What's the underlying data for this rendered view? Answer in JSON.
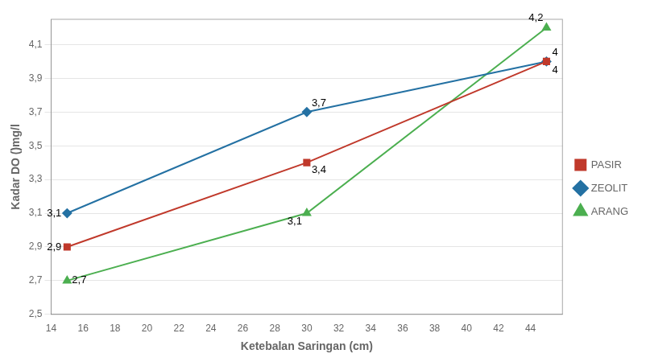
{
  "chart_data": {
    "type": "line",
    "x": [
      15,
      30,
      45
    ],
    "series": [
      {
        "name": "PASIR",
        "color": "#C0392B",
        "marker": "square",
        "values": [
          2.9,
          3.4,
          4.0
        ],
        "value_labels": [
          "2,9",
          "3,4",
          "4"
        ]
      },
      {
        "name": "ZEOLIT",
        "color": "#2471A3",
        "marker": "diamond",
        "values": [
          3.1,
          3.7,
          4.0
        ],
        "value_labels": [
          "3,1",
          "3,7",
          "4"
        ]
      },
      {
        "name": "ARANG",
        "color": "#4CAF50",
        "marker": "triangle",
        "values": [
          2.7,
          3.1,
          4.2
        ],
        "value_labels": [
          "2,7",
          "3,1",
          "4,2"
        ]
      }
    ],
    "xlabel": "Ketebalan Saringan (cm)",
    "ylabel": "Kadar DO ()mg/l",
    "xlim": [
      14,
      46
    ],
    "ylim": [
      2.5,
      4.25
    ],
    "xticks": [
      14,
      16,
      18,
      20,
      22,
      24,
      26,
      28,
      30,
      32,
      34,
      36,
      38,
      40,
      42,
      44
    ],
    "yticks": [
      {
        "value": 2.5,
        "label": "2,5"
      },
      {
        "value": 2.7,
        "label": "2,7"
      },
      {
        "value": 2.9,
        "label": "2,9"
      },
      {
        "value": 3.1,
        "label": "3,1"
      },
      {
        "value": 3.3,
        "label": "3,3"
      },
      {
        "value": 3.5,
        "label": "3,5"
      },
      {
        "value": 3.7,
        "label": "3,7"
      },
      {
        "value": 3.9,
        "label": "3,9"
      },
      {
        "value": 4.1,
        "label": "4,1"
      }
    ],
    "grid": "y",
    "legend": "right",
    "data_labels": true
  }
}
